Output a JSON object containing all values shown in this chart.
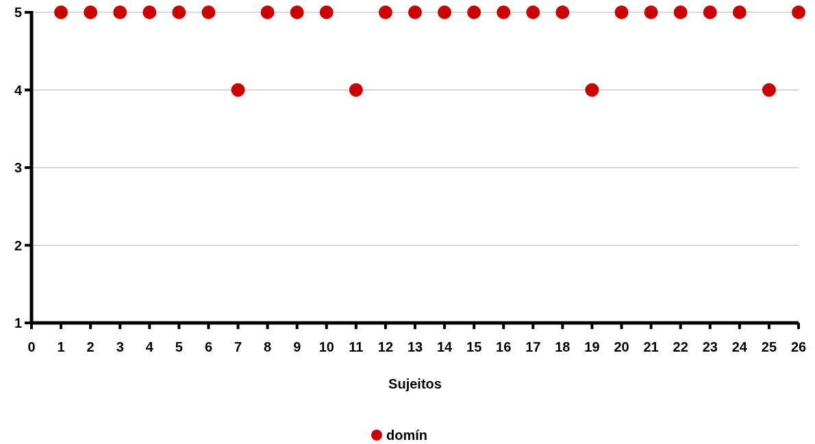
{
  "chart_data": {
    "type": "scatter",
    "xlabel": "Sujeitos",
    "x": [
      1,
      2,
      3,
      4,
      5,
      6,
      7,
      8,
      9,
      10,
      11,
      12,
      13,
      14,
      15,
      16,
      17,
      18,
      19,
      20,
      21,
      22,
      23,
      24,
      25,
      26
    ],
    "series": [
      {
        "name": "domín",
        "color": "#cc0000",
        "values": [
          5,
          5,
          5,
          5,
          5,
          5,
          4,
          5,
          5,
          5,
          4,
          5,
          5,
          5,
          5,
          5,
          5,
          5,
          4,
          5,
          5,
          5,
          5,
          5,
          4,
          5
        ]
      }
    ],
    "xlim": [
      0,
      26
    ],
    "xticks": [
      0,
      1,
      2,
      3,
      4,
      5,
      6,
      7,
      8,
      9,
      10,
      11,
      12,
      13,
      14,
      15,
      16,
      17,
      18,
      19,
      20,
      21,
      22,
      23,
      24,
      25,
      26
    ],
    "ylim": [
      1,
      5
    ],
    "yticks": [
      1,
      2,
      3,
      4,
      5
    ],
    "grid": "y",
    "legend": "bottom",
    "marker": "circle"
  }
}
